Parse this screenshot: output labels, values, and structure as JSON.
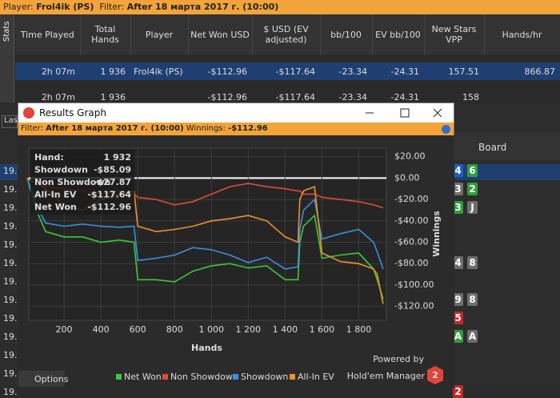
{
  "window": {
    "player_label": "Player:",
    "player": "Frol4ik (PS)",
    "filter_label": "Filter:",
    "filter": "After 18 марта 2017 г. (10:00)",
    "stats_tab": "Stats"
  },
  "table": {
    "headers": [
      "Time Played",
      "Total Hands",
      "Player",
      "Net Won USD",
      "$ USD (EV adjusted)",
      "bb/100",
      "EV bb/100",
      "New Stars VPP",
      "Hands/hr"
    ],
    "rows": [
      {
        "time": "2h 07m",
        "hands": "1 936",
        "player": "Frol4ik (PS)",
        "net": "-$112.96",
        "ev": "-$117.64",
        "bb": "-23.34",
        "evbb": "-24.31",
        "vpp": "157.51",
        "hph": "866.87"
      },
      {
        "time": "2h 07m",
        "hands": "1 936",
        "net": "-$112.96",
        "ev": "-$117.64",
        "bb": "-23.34",
        "evbb": "-24.31",
        "vpp": "158"
      }
    ]
  },
  "hands_panel": {
    "tab": "Las",
    "board_header": "Board",
    "rows": [
      {
        "label": "19.",
        "cards": [
          {
            "text": "4",
            "color": "#1f5fbf"
          },
          {
            "text": "6",
            "color": "#2f9e3a"
          }
        ]
      },
      {
        "label": "19.",
        "cards": [
          {
            "text": "3",
            "color": "#6d6d6d"
          },
          {
            "text": "2",
            "color": "#2f9e3a"
          }
        ]
      },
      {
        "label": "19.",
        "cards": [
          {
            "text": "3",
            "color": "#2f9e3a"
          },
          {
            "text": "J",
            "color": "#6d6d6d"
          }
        ]
      },
      {
        "label": "19."
      },
      {
        "label": "19."
      },
      {
        "label": "19.",
        "cards": [
          {
            "text": "4",
            "color": "#6d6d6d"
          },
          {
            "text": "8",
            "color": "#6d6d6d"
          }
        ]
      },
      {
        "label": "19."
      },
      {
        "label": "19.",
        "cards": [
          {
            "text": "9",
            "color": "#6d6d6d"
          },
          {
            "text": "8",
            "color": "#6d6d6d"
          }
        ]
      },
      {
        "label": "19.",
        "cards": [
          {
            "text": "5",
            "color": "#c62828"
          }
        ]
      },
      {
        "label": "19.",
        "cards": [
          {
            "text": "A",
            "color": "#2f9e3a"
          },
          {
            "text": "A",
            "color": "#6d6d6d"
          }
        ]
      },
      {
        "label": "19."
      },
      {
        "label": "19."
      },
      {
        "label": "19.",
        "cards": [
          {
            "text": "2",
            "color": "#c62828"
          }
        ]
      }
    ]
  },
  "graph": {
    "window_title": "Results Graph",
    "filter_label": "Filter:",
    "filter": "After 18 марта 2017 г. (10:00)",
    "winnings_label": "Winnings:",
    "winnings": "-$112.96",
    "tooltip": [
      {
        "label": "Hand:",
        "value": "1 932"
      },
      {
        "label": "Showdown",
        "value": "-$85.09"
      },
      {
        "label": "Non Showdown",
        "value": "-$27.87"
      },
      {
        "label": "All-In EV",
        "value": "-$117.64"
      },
      {
        "label": "Net Won",
        "value": "-$112.96"
      }
    ],
    "options": "Options",
    "powered_by": "Powered by",
    "brand": "Hold'em Manager",
    "logo": "2"
  },
  "chart_data": {
    "type": "line",
    "xlabel": "Hands",
    "ylabel": "Winnings",
    "x": [
      0,
      50,
      100,
      200,
      300,
      400,
      500,
      580,
      600,
      700,
      800,
      900,
      1000,
      1100,
      1200,
      1300,
      1400,
      1470,
      1480,
      1500,
      1560,
      1600,
      1700,
      1800,
      1880,
      1900,
      1932
    ],
    "series": [
      {
        "name": "Net Won",
        "color": "#3cc83c",
        "values": [
          0,
          -30,
          -50,
          -55,
          -55,
          -60,
          -58,
          -60,
          -95,
          -95,
          -97,
          -87,
          -82,
          -80,
          -84,
          -82,
          -95,
          -95,
          -60,
          -45,
          -35,
          -75,
          -72,
          -70,
          -85,
          -95,
          -112.96
        ]
      },
      {
        "name": "Non Showdown",
        "color": "#e04a40",
        "values": [
          0,
          -5,
          -8,
          -10,
          -12,
          -15,
          -12,
          -15,
          -18,
          -20,
          -25,
          -22,
          -15,
          -8,
          -5,
          -8,
          -10,
          -12,
          -12,
          -15,
          -15,
          -18,
          -20,
          -22,
          -25,
          -26,
          -27.87
        ]
      },
      {
        "name": "Showdown",
        "color": "#3b8fe0",
        "values": [
          0,
          -25,
          -42,
          -45,
          -43,
          -45,
          -46,
          -45,
          -77,
          -75,
          -72,
          -65,
          -67,
          -72,
          -79,
          -74,
          -85,
          -83,
          -48,
          -30,
          -20,
          -57,
          -52,
          -48,
          -60,
          -69,
          -85.09
        ]
      },
      {
        "name": "All-In EV",
        "color": "#f0902a",
        "values": [
          0,
          -5,
          -10,
          -25,
          -30,
          -20,
          -15,
          -12,
          -45,
          -50,
          -48,
          -45,
          -40,
          -38,
          -35,
          -40,
          -55,
          -60,
          -20,
          -12,
          -8,
          -70,
          -78,
          -80,
          -85,
          -90,
          -117.64
        ]
      }
    ],
    "xlim": [
      0,
      1950
    ],
    "ylim": [
      -133,
      28
    ],
    "xticks": [
      200,
      400,
      600,
      800,
      {
        "value": 1000,
        "label": "1 000"
      },
      {
        "value": 1200,
        "label": "1 200"
      },
      {
        "value": 1400,
        "label": "1 400"
      },
      {
        "value": 1600,
        "label": "1 600"
      },
      {
        "value": 1800,
        "label": "1 800"
      }
    ],
    "yticks": [
      {
        "value": 20,
        "label": "$20.00"
      },
      {
        "value": 0,
        "label": "$0.00"
      },
      {
        "value": -20,
        "label": "-$20.00"
      },
      {
        "value": -40,
        "label": "-$40.00"
      },
      {
        "value": -60,
        "label": "-$60.00"
      },
      {
        "value": -80,
        "label": "-$80.00"
      },
      {
        "value": -100,
        "label": "-$100.00"
      },
      {
        "value": -120,
        "label": "-$120.00"
      }
    ],
    "grid": true,
    "zero_line_color": "#ffffff"
  }
}
